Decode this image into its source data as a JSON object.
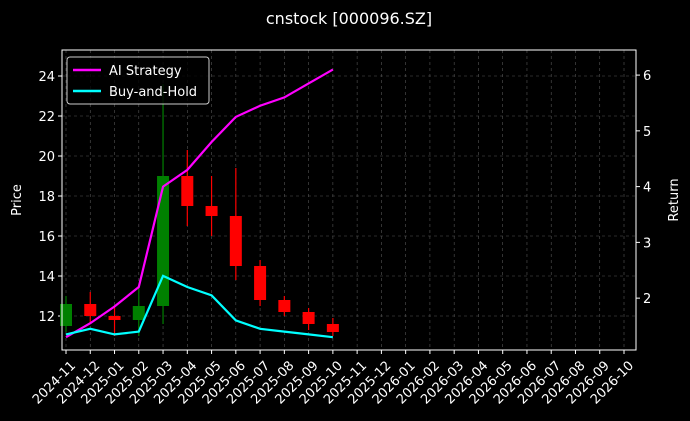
{
  "chart_data": {
    "type": "candlestick",
    "title": "cnstock [000096.SZ]",
    "ylabel": "Price",
    "y2label": "Return",
    "x": [
      "2024-11",
      "2024-12",
      "2025-01",
      "2025-02",
      "2025-03",
      "2025-04",
      "2025-05",
      "2025-06",
      "2025-07",
      "2025-08",
      "2025-09",
      "2025-10"
    ],
    "open": [
      11.5,
      12.6,
      12.0,
      11.8,
      12.5,
      19.0,
      17.5,
      17.0,
      14.5,
      12.8,
      12.2,
      11.6
    ],
    "high": [
      13.0,
      13.2,
      12.5,
      13.5,
      23.6,
      20.3,
      19.0,
      19.4,
      14.8,
      13.0,
      12.4,
      11.9
    ],
    "low": [
      11.2,
      11.6,
      11.0,
      11.0,
      11.6,
      16.5,
      16.0,
      13.8,
      12.5,
      12.0,
      11.3,
      11.0
    ],
    "close": [
      12.6,
      12.0,
      11.8,
      12.5,
      19.0,
      17.5,
      17.0,
      14.5,
      12.8,
      12.2,
      11.6,
      11.2
    ],
    "up_color": "#008000",
    "down_color": "#ff0000",
    "series": [
      {
        "name": "AI Strategy",
        "color": "#ff00ff",
        "axis": "y2",
        "values": [
          1.3,
          1.55,
          1.85,
          2.2,
          4.0,
          4.3,
          4.8,
          5.25,
          5.45,
          5.6,
          5.85,
          6.1
        ]
      },
      {
        "name": "Buy-and-Hold",
        "color": "#00ffff",
        "axis": "y2",
        "values": [
          1.35,
          1.45,
          1.35,
          1.4,
          2.4,
          2.2,
          2.05,
          1.6,
          1.45,
          1.4,
          1.35,
          1.3
        ]
      }
    ],
    "xlim": [
      "2024-11",
      "2026-10"
    ],
    "xticks": [
      "2024-11",
      "2024-12",
      "2025-01",
      "2025-02",
      "2025-03",
      "2025-04",
      "2025-05",
      "2025-06",
      "2025-07",
      "2025-08",
      "2025-09",
      "2025-10",
      "2025-11",
      "2025-12",
      "2026-01",
      "2026-02",
      "2026-03",
      "2026-04",
      "2026-05",
      "2026-06",
      "2026-07",
      "2026-08",
      "2026-09",
      "2026-10"
    ],
    "ylim": [
      10.3,
      25.3
    ],
    "yticks": [
      12,
      14,
      16,
      18,
      20,
      22,
      24
    ],
    "y2lim": [
      1.07,
      6.45
    ],
    "y2ticks": [
      2,
      3,
      4,
      5,
      6
    ],
    "grid": true,
    "legend": "upper left"
  }
}
